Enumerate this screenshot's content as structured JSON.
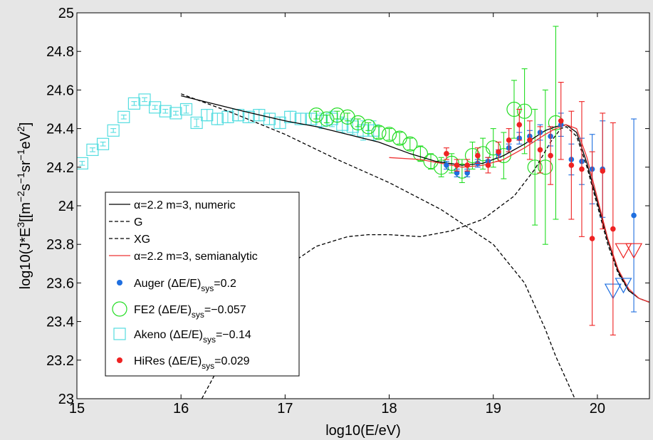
{
  "chart_data": {
    "type": "scatter",
    "xlabel": "log10(E/eV)",
    "ylabel": "log10(J*E^3[[m^-2 s^-1 sr^-1 eV^2]",
    "xlim": [
      15,
      20.5
    ],
    "ylim": [
      23,
      25
    ],
    "xticks": [
      15,
      16,
      17,
      18,
      19,
      20
    ],
    "yticks": [
      23,
      23.2,
      23.4,
      23.6,
      23.8,
      24,
      24.2,
      24.4,
      24.6,
      24.8,
      25
    ],
    "legend_placement": "lower-left",
    "colors": {
      "background": "#e6e6e6",
      "plot_bg": "#ffffff",
      "auger": "#1f6fe0",
      "fe2": "#22dd22",
      "akeno": "#55dde0",
      "hires": "#ee2222",
      "semianalytic": "#ee3333"
    },
    "legend": [
      {
        "key": "numeric",
        "label": "α=2.2 m=3, numeric"
      },
      {
        "key": "G",
        "label": "G"
      },
      {
        "key": "XG",
        "label": "XG"
      },
      {
        "key": "semianalytic",
        "label": "α=2.2 m=3, semianalytic"
      },
      {
        "key": "auger",
        "label": "Auger (ΔE/E)",
        "sub": "sys",
        "tail": "=0.2"
      },
      {
        "key": "fe2",
        "label": "FE2 (ΔE/E)",
        "sub": "sys",
        "tail": "=−0.057"
      },
      {
        "key": "akeno",
        "label": "Akeno (ΔE/E)",
        "sub": "sys",
        "tail": "=−0.14"
      },
      {
        "key": "hires",
        "label": "HiRes (ΔE/E)",
        "sub": "sys",
        "tail": "=0.029"
      }
    ],
    "series": [
      {
        "name": "α=2.2 m=3, numeric",
        "style": "line",
        "x": [
          16.0,
          16.3,
          16.6,
          17.0,
          17.3,
          17.6,
          17.9,
          18.2,
          18.45,
          18.7,
          18.9,
          19.1,
          19.3,
          19.5,
          19.6,
          19.7,
          19.8,
          19.9,
          20.0,
          20.1,
          20.2,
          20.3,
          20.4,
          20.5
        ],
        "y": [
          24.57,
          24.53,
          24.49,
          24.44,
          24.41,
          24.37,
          24.33,
          24.27,
          24.23,
          24.21,
          24.22,
          24.26,
          24.32,
          24.39,
          24.41,
          24.42,
          24.38,
          24.22,
          24.02,
          23.82,
          23.66,
          23.56,
          23.52,
          23.5
        ]
      },
      {
        "name": "G",
        "style": "dashed",
        "x": [
          16.0,
          16.5,
          17.0,
          17.5,
          18.0,
          18.5,
          19.0,
          19.3,
          19.5,
          19.6,
          19.7,
          19.8
        ],
        "y": [
          24.58,
          24.48,
          24.37,
          24.24,
          24.12,
          23.98,
          23.8,
          23.6,
          23.36,
          23.22,
          23.1,
          22.98
        ]
      },
      {
        "name": "XG",
        "style": "dashed",
        "x": [
          16.2,
          16.5,
          16.8,
          17.0,
          17.3,
          17.6,
          17.8,
          18.0,
          18.3,
          18.6,
          18.9,
          19.2,
          19.4,
          19.55,
          19.65,
          19.7,
          19.8,
          19.9,
          20.0,
          20.1,
          20.2,
          20.3,
          20.4,
          20.5
        ],
        "y": [
          23.0,
          23.3,
          23.54,
          23.68,
          23.79,
          23.84,
          23.85,
          23.85,
          23.84,
          23.87,
          23.93,
          24.05,
          24.19,
          24.33,
          24.4,
          24.41,
          24.36,
          24.2,
          24.0,
          23.8,
          23.65,
          23.56,
          23.52,
          23.5
        ]
      },
      {
        "name": "α=2.2 m=3, semianalytic",
        "style": "line",
        "x": [
          18.0,
          18.3,
          18.5,
          18.7,
          18.9,
          19.1,
          19.3,
          19.5,
          19.6,
          19.7,
          19.8,
          19.9,
          20.0,
          20.1,
          20.2,
          20.3,
          20.4,
          20.5
        ],
        "y": [
          24.25,
          24.24,
          24.22,
          24.2,
          24.21,
          24.24,
          24.3,
          24.37,
          24.4,
          24.42,
          24.4,
          24.25,
          24.04,
          23.83,
          23.67,
          23.57,
          23.52,
          23.5
        ]
      },
      {
        "name": "Auger (ΔE/E)sys=0.2",
        "style": "dots",
        "x": [
          18.55,
          18.65,
          18.75,
          18.85,
          18.95,
          19.05,
          19.15,
          19.25,
          19.35,
          19.45,
          19.55,
          19.65,
          19.75,
          19.85,
          19.95,
          20.05,
          20.15,
          20.25,
          20.35
        ],
        "y": [
          24.21,
          24.17,
          24.17,
          24.22,
          24.23,
          24.27,
          24.3,
          24.35,
          24.36,
          24.38,
          24.36,
          24.42,
          24.24,
          24.23,
          24.19,
          24.19,
          23.52,
          23.55,
          23.95
        ],
        "err": [
          0.02,
          0.02,
          0.02,
          0.02,
          0.02,
          0.02,
          0.02,
          0.03,
          0.03,
          0.04,
          0.05,
          0.06,
          0.08,
          0.12,
          0.18,
          0.25,
          0.0,
          0.0,
          0.5
        ],
        "upper_limit": [
          false,
          false,
          false,
          false,
          false,
          false,
          false,
          false,
          false,
          false,
          false,
          false,
          false,
          false,
          false,
          false,
          true,
          true,
          false
        ]
      },
      {
        "name": "FE2 (ΔE/E)sys=−0.057",
        "style": "circles",
        "x": [
          17.3,
          17.4,
          17.5,
          17.6,
          17.7,
          17.8,
          17.9,
          18.0,
          18.1,
          18.2,
          18.3,
          18.4,
          18.5,
          18.6,
          18.7,
          18.8,
          18.9,
          19.0,
          19.1,
          19.2,
          19.3,
          19.4,
          19.5,
          19.6
        ],
        "y": [
          24.47,
          24.45,
          24.47,
          24.46,
          24.43,
          24.41,
          24.38,
          24.37,
          24.35,
          24.32,
          24.27,
          24.23,
          24.2,
          24.22,
          24.18,
          24.26,
          24.27,
          24.3,
          24.26,
          24.5,
          24.49,
          24.2,
          24.2,
          24.43
        ],
        "err": [
          0.02,
          0.02,
          0.02,
          0.02,
          0.02,
          0.02,
          0.03,
          0.03,
          0.03,
          0.03,
          0.04,
          0.04,
          0.05,
          0.05,
          0.06,
          0.07,
          0.08,
          0.1,
          0.12,
          0.15,
          0.22,
          0.3,
          0.4,
          0.5
        ]
      },
      {
        "name": "Akeno (ΔE/E)sys=−0.14",
        "style": "squares",
        "x": [
          15.05,
          15.15,
          15.25,
          15.35,
          15.45,
          15.55,
          15.65,
          15.75,
          15.85,
          15.95,
          16.05,
          16.15,
          16.25,
          16.35,
          16.45,
          16.55,
          16.65,
          16.75,
          16.85,
          16.95,
          17.05,
          17.15,
          17.25,
          17.35,
          17.45,
          17.55,
          17.65,
          17.75,
          17.85
        ],
        "y": [
          24.22,
          24.29,
          24.32,
          24.39,
          24.46,
          24.53,
          24.55,
          24.51,
          24.49,
          24.48,
          24.5,
          24.43,
          24.47,
          24.45,
          24.46,
          24.47,
          24.46,
          24.47,
          24.45,
          24.43,
          24.46,
          24.45,
          24.45,
          24.44,
          24.45,
          24.42,
          24.41,
          24.39,
          24.39
        ],
        "err": [
          0.01,
          0.01,
          0.01,
          0.01,
          0.01,
          0.01,
          0.01,
          0.01,
          0.01,
          0.01,
          0.02,
          0.02,
          0.03,
          0.03,
          0.03,
          0.03,
          0.03,
          0.03,
          0.03,
          0.03,
          0.03,
          0.03,
          0.03,
          0.04,
          0.04,
          0.04,
          0.04,
          0.05,
          0.05
        ]
      },
      {
        "name": "HiRes (ΔE/E)sys=0.029",
        "style": "dots",
        "x": [
          18.55,
          18.65,
          18.75,
          18.85,
          18.95,
          19.05,
          19.15,
          19.25,
          19.35,
          19.45,
          19.55,
          19.65,
          19.75,
          19.85,
          19.95,
          20.05,
          20.15,
          20.25,
          20.35
        ],
        "y": [
          24.27,
          24.21,
          24.21,
          24.26,
          24.21,
          24.28,
          24.34,
          24.42,
          24.34,
          24.29,
          24.26,
          24.44,
          24.21,
          24.19,
          23.83,
          24.18,
          23.88,
          23.73,
          23.73
        ],
        "err": [
          0.03,
          0.03,
          0.03,
          0.04,
          0.04,
          0.05,
          0.06,
          0.08,
          0.1,
          0.12,
          0.15,
          0.2,
          0.28,
          0.35,
          0.45,
          0.3,
          0.55,
          0.0,
          0.0
        ],
        "upper_limit": [
          false,
          false,
          false,
          false,
          false,
          false,
          false,
          false,
          false,
          false,
          false,
          false,
          false,
          false,
          false,
          false,
          false,
          true,
          true
        ]
      }
    ]
  }
}
